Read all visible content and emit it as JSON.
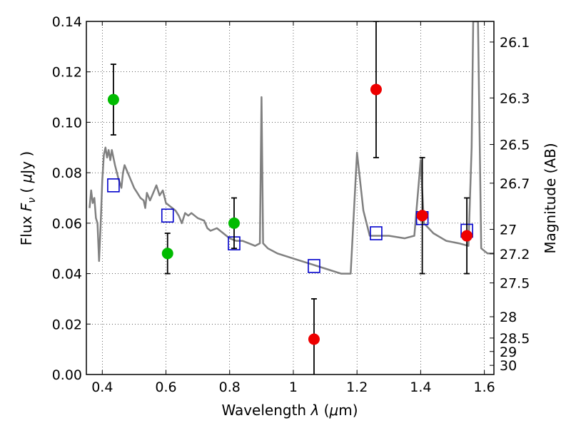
{
  "chart_data": {
    "type": "scatter",
    "title": "",
    "xlabel": "Wavelength  λ (μm)",
    "ylabel": "Flux  F_ν  ( μJy )",
    "ylabel_parts": {
      "pre": "Flux  ",
      "var": "F",
      "sub": "ν",
      "mid": "  ( ",
      "mu": "μ",
      "post": "Jy )"
    },
    "xlabel_parts": {
      "pre": "Wavelength  ",
      "var": "λ",
      "mid": " (",
      "mu": "μ",
      "post": "m)"
    },
    "y2label": "Magnitude (AB)",
    "xlim": [
      0.35,
      1.63
    ],
    "ylim": [
      0.0,
      0.14
    ],
    "grid": true,
    "xticks": [
      0.4,
      0.6,
      0.8,
      1.0,
      1.2,
      1.4,
      1.6
    ],
    "xtick_labels": [
      "0.4",
      "0.6",
      "0.8",
      "1",
      "1.2",
      "1.4",
      "1.6"
    ],
    "yticks": [
      0.0,
      0.02,
      0.04,
      0.06,
      0.08,
      0.1,
      0.12,
      0.14
    ],
    "ytick_labels": [
      "0.00",
      "0.02",
      "0.04",
      "0.06",
      "0.08",
      "0.10",
      "0.12",
      "0.14"
    ],
    "y2ticks": [
      26.1,
      26.3,
      26.5,
      26.7,
      27.0,
      27.2,
      27.5,
      28.0,
      28.5,
      29.0,
      30.0
    ],
    "y2tick_labels": [
      "26.1",
      "26.3",
      "26.5",
      "26.7",
      "27",
      "27.2",
      "27.5",
      "28",
      "28.5",
      "29",
      "30"
    ],
    "colors": {
      "sed": "#808080",
      "green": "#00bb00",
      "red": "#ee0000",
      "model": "#0000cc",
      "errorbar": "#000000"
    },
    "series": [
      {
        "kind": "model_sed_line",
        "points": [
          [
            0.36,
            0.066
          ],
          [
            0.365,
            0.073
          ],
          [
            0.37,
            0.068
          ],
          [
            0.375,
            0.07
          ],
          [
            0.38,
            0.062
          ],
          [
            0.385,
            0.06
          ],
          [
            0.39,
            0.045
          ],
          [
            0.395,
            0.06
          ],
          [
            0.4,
            0.077
          ],
          [
            0.405,
            0.087
          ],
          [
            0.41,
            0.09
          ],
          [
            0.415,
            0.086
          ],
          [
            0.42,
            0.089
          ],
          [
            0.425,
            0.085
          ],
          [
            0.43,
            0.089
          ],
          [
            0.44,
            0.083
          ],
          [
            0.45,
            0.078
          ],
          [
            0.46,
            0.074
          ],
          [
            0.465,
            0.08
          ],
          [
            0.47,
            0.083
          ],
          [
            0.48,
            0.08
          ],
          [
            0.49,
            0.077
          ],
          [
            0.5,
            0.074
          ],
          [
            0.51,
            0.072
          ],
          [
            0.52,
            0.07
          ],
          [
            0.53,
            0.069
          ],
          [
            0.535,
            0.066
          ],
          [
            0.54,
            0.072
          ],
          [
            0.55,
            0.069
          ],
          [
            0.56,
            0.072
          ],
          [
            0.57,
            0.075
          ],
          [
            0.58,
            0.071
          ],
          [
            0.59,
            0.073
          ],
          [
            0.6,
            0.068
          ],
          [
            0.62,
            0.066
          ],
          [
            0.63,
            0.065
          ],
          [
            0.64,
            0.063
          ],
          [
            0.65,
            0.06
          ],
          [
            0.66,
            0.064
          ],
          [
            0.67,
            0.063
          ],
          [
            0.68,
            0.064
          ],
          [
            0.7,
            0.062
          ],
          [
            0.72,
            0.061
          ],
          [
            0.73,
            0.058
          ],
          [
            0.74,
            0.057
          ],
          [
            0.76,
            0.058
          ],
          [
            0.78,
            0.056
          ],
          [
            0.8,
            0.054
          ],
          [
            0.82,
            0.053
          ],
          [
            0.84,
            0.053
          ],
          [
            0.86,
            0.052
          ],
          [
            0.88,
            0.051
          ],
          [
            0.895,
            0.052
          ],
          [
            0.9,
            0.11
          ],
          [
            0.905,
            0.052
          ],
          [
            0.92,
            0.05
          ],
          [
            0.95,
            0.048
          ],
          [
            1.0,
            0.046
          ],
          [
            1.05,
            0.044
          ],
          [
            1.1,
            0.042
          ],
          [
            1.15,
            0.04
          ],
          [
            1.18,
            0.04
          ],
          [
            1.2,
            0.088
          ],
          [
            1.22,
            0.065
          ],
          [
            1.24,
            0.055
          ],
          [
            1.26,
            0.055
          ],
          [
            1.3,
            0.055
          ],
          [
            1.35,
            0.054
          ],
          [
            1.38,
            0.055
          ],
          [
            1.4,
            0.085
          ],
          [
            1.41,
            0.06
          ],
          [
            1.44,
            0.056
          ],
          [
            1.48,
            0.053
          ],
          [
            1.52,
            0.052
          ],
          [
            1.55,
            0.051
          ],
          [
            1.56,
            0.09
          ],
          [
            1.565,
            0.14
          ],
          [
            1.58,
            0.14
          ],
          [
            1.59,
            0.05
          ],
          [
            1.61,
            0.048
          ],
          [
            1.63,
            0.048
          ]
        ]
      },
      {
        "kind": "observed_detections",
        "marker": "circle",
        "color": "#00bb00",
        "points": [
          {
            "x": 0.435,
            "y": 0.109,
            "err": 0.014
          },
          {
            "x": 0.605,
            "y": 0.048,
            "err": 0.008
          },
          {
            "x": 0.814,
            "y": 0.06,
            "err": 0.01
          }
        ]
      },
      {
        "kind": "observed_photometry",
        "marker": "circle",
        "color": "#ee0000",
        "points": [
          {
            "x": 1.065,
            "y": 0.014,
            "err": 0.016
          },
          {
            "x": 1.26,
            "y": 0.113,
            "err": 0.027
          },
          {
            "x": 1.405,
            "y": 0.063,
            "err": 0.023
          },
          {
            "x": 1.545,
            "y": 0.055,
            "err": 0.015
          }
        ]
      },
      {
        "kind": "model_photometry",
        "marker": "square",
        "color": "#0000cc",
        "points": [
          {
            "x": 0.435,
            "y": 0.075
          },
          {
            "x": 0.605,
            "y": 0.063
          },
          {
            "x": 0.814,
            "y": 0.052
          },
          {
            "x": 1.065,
            "y": 0.043
          },
          {
            "x": 1.26,
            "y": 0.056
          },
          {
            "x": 1.405,
            "y": 0.062
          },
          {
            "x": 1.545,
            "y": 0.057
          }
        ]
      }
    ]
  }
}
